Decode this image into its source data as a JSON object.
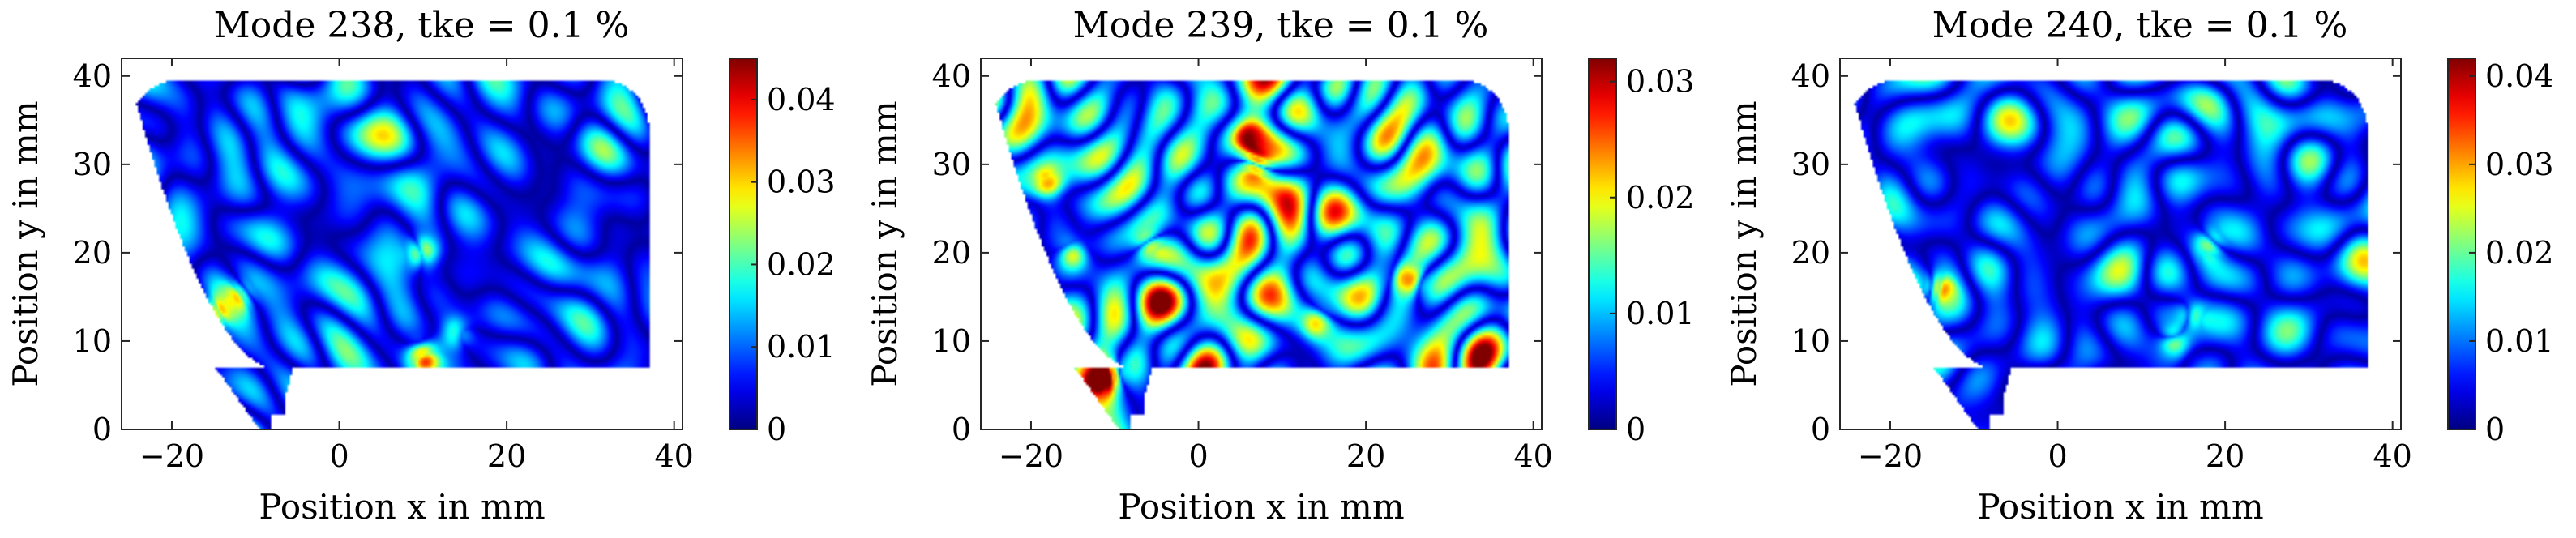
{
  "chart_data": [
    {
      "type": "heatmap",
      "title": "Mode 238, tke = 0.1 %",
      "xlabel": "Position x in mm",
      "ylabel": "Position y in mm",
      "xlim": [
        -26,
        41
      ],
      "ylim": [
        0,
        42
      ],
      "xticks": [
        "-20",
        "0",
        "20",
        "40"
      ],
      "xtick_values": [
        -20,
        0,
        20,
        40
      ],
      "yticks": [
        "0",
        "10",
        "20",
        "30",
        "40"
      ],
      "ytick_values": [
        0,
        10,
        20,
        30,
        40
      ],
      "colorbar": {
        "min": 0,
        "max": 0.045,
        "colormap": "jet",
        "ticks": [
          "0",
          "0.01",
          "0.02",
          "0.03",
          "0.04"
        ],
        "tick_values": [
          0,
          0.01,
          0.02,
          0.03,
          0.04
        ]
      },
      "seed": 238,
      "base_level": 0.009,
      "hotspots": [
        {
          "x": -15,
          "y": 13,
          "value": 0.03
        },
        {
          "x": 10,
          "y": 20,
          "value": 0.032
        },
        {
          "x": 10,
          "y": 8,
          "value": 0.038
        },
        {
          "x": 14,
          "y": 11,
          "value": 0.028
        },
        {
          "x": -12,
          "y": 15,
          "value": 0.024
        }
      ]
    },
    {
      "type": "heatmap",
      "title": "Mode 239, tke = 0.1 %",
      "xlabel": "Position x in mm",
      "ylabel": "Position y in mm",
      "xlim": [
        -26,
        41
      ],
      "ylim": [
        0,
        42
      ],
      "xticks": [
        "-20",
        "0",
        "20",
        "40"
      ],
      "xtick_values": [
        -20,
        0,
        20,
        40
      ],
      "yticks": [
        "0",
        "10",
        "20",
        "30",
        "40"
      ],
      "ytick_values": [
        0,
        10,
        20,
        30,
        40
      ],
      "colorbar": {
        "min": 0,
        "max": 0.032,
        "colormap": "jet",
        "ticks": [
          "0",
          "0.01",
          "0.02",
          "0.03"
        ],
        "tick_values": [
          0,
          0.01,
          0.02,
          0.03
        ]
      },
      "seed": 239,
      "base_level": 0.011,
      "hotspots": [
        {
          "x": -11,
          "y": 6,
          "value": 0.031
        },
        {
          "x": -18,
          "y": 28,
          "value": 0.026
        },
        {
          "x": -15,
          "y": 20,
          "value": 0.025
        },
        {
          "x": 7,
          "y": 30,
          "value": 0.026
        },
        {
          "x": 6,
          "y": 33,
          "value": 0.024
        },
        {
          "x": 25,
          "y": 17,
          "value": 0.027
        },
        {
          "x": 14,
          "y": 12,
          "value": 0.024
        },
        {
          "x": -6,
          "y": 21,
          "value": 0.022
        }
      ]
    },
    {
      "type": "heatmap",
      "title": "Mode 240, tke = 0.1 %",
      "xlabel": "Position x in mm",
      "ylabel": "Position y in mm",
      "xlim": [
        -26,
        41
      ],
      "ylim": [
        0,
        42
      ],
      "xticks": [
        "-20",
        "0",
        "20",
        "40"
      ],
      "xtick_values": [
        -20,
        0,
        20,
        40
      ],
      "yticks": [
        "0",
        "10",
        "20",
        "30",
        "40"
      ],
      "ytick_values": [
        0,
        10,
        20,
        30,
        40
      ],
      "colorbar": {
        "min": 0,
        "max": 0.042,
        "colormap": "jet",
        "ticks": [
          "0",
          "0.01",
          "0.02",
          "0.03",
          "0.04"
        ],
        "tick_values": [
          0,
          0.01,
          0.02,
          0.03,
          0.04
        ]
      },
      "seed": 240,
      "base_level": 0.009,
      "hotspots": [
        {
          "x": -20,
          "y": 18,
          "value": 0.03
        },
        {
          "x": -14,
          "y": 16,
          "value": 0.027
        },
        {
          "x": 14,
          "y": 10,
          "value": 0.026
        },
        {
          "x": 18,
          "y": 21,
          "value": 0.024
        },
        {
          "x": 16,
          "y": 13,
          "value": 0.022
        }
      ]
    }
  ]
}
